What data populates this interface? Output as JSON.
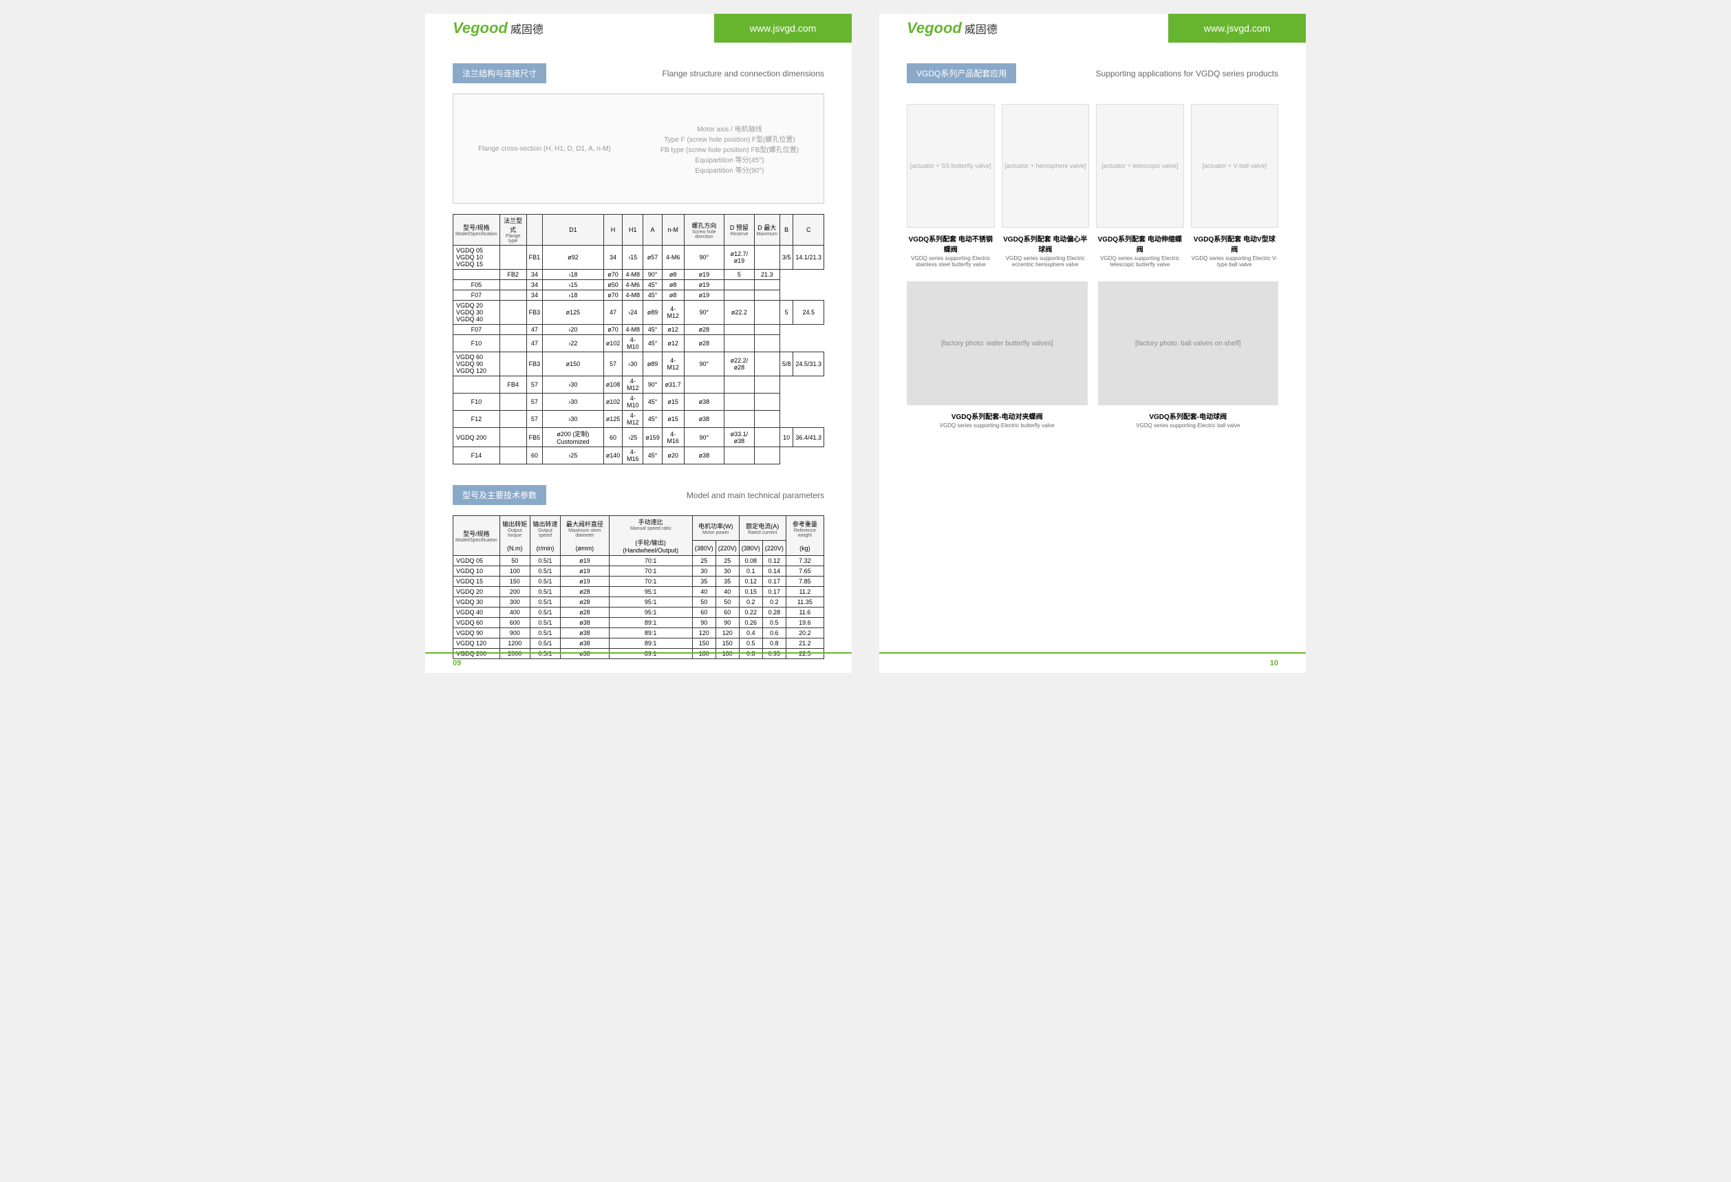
{
  "brand": {
    "logo_en": "Vegood",
    "logo_cn": "威固德",
    "url": "www.jsvgd.com"
  },
  "colors": {
    "brand_green": "#67b52f",
    "section_blue": "#8aa8c8",
    "border": "#333333",
    "text": "#333333",
    "muted": "#666666"
  },
  "left_page": {
    "page_num": "09",
    "section1": {
      "title_cn": "法兰结构与连接尺寸",
      "title_en": "Flange structure and connection dimensions",
      "diagram_labels": [
        "Flange cross-section (H, H1, D, D1, A, n-M)",
        "Motor axis / 电机轴线",
        "Type F (screw hole position) F型(螺孔位置)",
        "FB type (screw hole position) FB型(螺孔位置)",
        "Equipartition 等分(45°)",
        "Equipartition 等分(90°)",
        "90°",
        "45°"
      ]
    },
    "table1": {
      "headers": [
        {
          "cn": "型号/规格",
          "en": "Model/Specification"
        },
        {
          "cn": "法兰型式",
          "en": "Flange type"
        },
        {
          "cn": "D1",
          "en": ""
        },
        {
          "cn": "H",
          "en": ""
        },
        {
          "cn": "H1",
          "en": ""
        },
        {
          "cn": "A",
          "en": ""
        },
        {
          "cn": "n-M",
          "en": ""
        },
        {
          "cn": "螺孔方向",
          "en": "Screw hole direction"
        },
        {
          "cn": "D",
          "en": "",
          "sub": [
            {
              "cn": "预留",
              "en": "Reserve"
            },
            {
              "cn": "最大",
              "en": "Maximum"
            }
          ]
        },
        {
          "cn": "B",
          "en": ""
        },
        {
          "cn": "C",
          "en": ""
        }
      ],
      "rows": [
        {
          "models": [
            "VGDQ 05",
            "VGDQ 10",
            "VGDQ 15"
          ],
          "flange": [
            "",
            "FB1",
            "",
            "FB2",
            "F05",
            "",
            "F07",
            ""
          ],
          "d1": "ø92",
          "data": [
            [
              "34",
              "›15",
              "ø57",
              "4-M6",
              "90°",
              "ø12.7/ø19",
              "",
              "3/5",
              "14.1/21.3"
            ],
            [
              "34",
              "›18",
              "ø70",
              "4-M8",
              "90°",
              "ø8",
              "ø19",
              "5",
              "21.3"
            ],
            [
              "34",
              "›15",
              "ø50",
              "4-M6",
              "45°",
              "ø8",
              "ø19",
              "",
              ""
            ],
            [
              "34",
              "›18",
              "ø70",
              "4-M8",
              "45°",
              "ø8",
              "ø19",
              "",
              ""
            ]
          ]
        },
        {
          "models": [
            "VGDQ 20",
            "VGDQ 30",
            "VGDQ 40"
          ],
          "flange": [
            "",
            "FB3",
            "F07",
            "",
            "F10",
            ""
          ],
          "d1": "ø125",
          "data": [
            [
              "47",
              "›24",
              "ø89",
              "4-M12",
              "90°",
              "ø22.2",
              "",
              "5",
              "24.5"
            ],
            [
              "47",
              "›20",
              "ø70",
              "4-M8",
              "45°",
              "ø12",
              "ø28",
              "",
              ""
            ],
            [
              "47",
              "›22",
              "ø102",
              "4-M10",
              "45°",
              "ø12",
              "ø28",
              "",
              ""
            ]
          ]
        },
        {
          "models": [
            "VGDQ 60",
            "VGDQ 90",
            "VGDQ 120"
          ],
          "flange": [
            "",
            "FB3",
            "",
            "FB4",
            "F10",
            "",
            "F12",
            ""
          ],
          "d1": "ø150",
          "data": [
            [
              "57",
              "›30",
              "ø89",
              "4-M12",
              "90°",
              "ø22.2/ø28",
              "",
              "5/8",
              "24.5/31.3"
            ],
            [
              "57",
              "›30",
              "ø108",
              "4-M12",
              "90°",
              "ø31.7",
              "",
              "",
              ""
            ],
            [
              "57",
              "›30",
              "ø102",
              "4-M10",
              "45°",
              "ø15",
              "ø38",
              "",
              ""
            ],
            [
              "57",
              "›30",
              "ø125",
              "4-M12",
              "45°",
              "ø15",
              "ø38",
              "",
              ""
            ]
          ]
        },
        {
          "models": [
            "VGDQ 200"
          ],
          "flange": [
            "",
            "FB5",
            "F14",
            ""
          ],
          "d1": "ø200 (定制) Customized",
          "data": [
            [
              "60",
              "›25",
              "ø159",
              "4-M16",
              "90°",
              "ø33.1/ø38",
              "",
              "10",
              "36.4/41.3"
            ],
            [
              "60",
              "›25",
              "ø140",
              "4-M16",
              "45°",
              "ø20",
              "ø38",
              "",
              ""
            ]
          ]
        }
      ]
    },
    "section2": {
      "title_cn": "型号及主要技术参数",
      "title_en": "Model and main technical parameters"
    },
    "table2": {
      "headers": [
        {
          "cn": "型号/规格",
          "en": "Model/Specification"
        },
        {
          "cn": "输出转矩",
          "en": "Output torque",
          "unit": "(N.m)"
        },
        {
          "cn": "输出转速",
          "en": "Output speed",
          "unit": "(r/min)"
        },
        {
          "cn": "最大阀杆直径",
          "en": "Maximum stem diameter",
          "unit": "(ømm)"
        },
        {
          "cn": "手动速比",
          "en": "Manual speed ratio",
          "unit": "(手轮/输出) (Handwheel/Output)"
        },
        {
          "cn": "电机功率(W)",
          "en": "Motor power",
          "sub": [
            "(380V)",
            "(220V)"
          ]
        },
        {
          "cn": "额定电流(A)",
          "en": "Rated current",
          "sub": [
            "(380V)",
            "(220V)"
          ]
        },
        {
          "cn": "参考重量",
          "en": "Reference weight",
          "unit": "(kg)"
        }
      ],
      "rows": [
        [
          "VGDQ 05",
          "50",
          "0.5/1",
          "ø19",
          "70:1",
          "25",
          "25",
          "0.08",
          "0.12",
          "7.32"
        ],
        [
          "VGDQ 10",
          "100",
          "0.5/1",
          "ø19",
          "70:1",
          "30",
          "30",
          "0.1",
          "0.14",
          "7.65"
        ],
        [
          "VGDQ 15",
          "150",
          "0.5/1",
          "ø19",
          "70:1",
          "35",
          "35",
          "0.12",
          "0.17",
          "7.85"
        ],
        [
          "VGDQ 20",
          "200",
          "0.5/1",
          "ø28",
          "95:1",
          "40",
          "40",
          "0.15",
          "0.17",
          "11.2"
        ],
        [
          "VGDQ 30",
          "300",
          "0.5/1",
          "ø28",
          "95:1",
          "50",
          "50",
          "0.2",
          "0.2",
          "11.35"
        ],
        [
          "VGDQ 40",
          "400",
          "0.5/1",
          "ø28",
          "95:1",
          "60",
          "60",
          "0.22",
          "0.28",
          "11.6"
        ],
        [
          "VGDQ 60",
          "600",
          "0.5/1",
          "ø38",
          "89:1",
          "90",
          "90",
          "0.26",
          "0.5",
          "19.6"
        ],
        [
          "VGDQ 90",
          "900",
          "0.5/1",
          "ø38",
          "89:1",
          "120",
          "120",
          "0.4",
          "0.6",
          "20.2"
        ],
        [
          "VGDQ 120",
          "1200",
          "0.5/1",
          "ø38",
          "89:1",
          "150",
          "150",
          "0.5",
          "0.8",
          "21.2"
        ],
        [
          "VGDQ 200",
          "2000",
          "0.5/1",
          "ø38",
          "89:1",
          "180",
          "180",
          "0.8",
          "0.95",
          "22.5"
        ]
      ]
    }
  },
  "right_page": {
    "page_num": "10",
    "section": {
      "title_cn": "VGDQ系列产品配套应用",
      "title_en": "Supporting applications for VGDQ series products"
    },
    "products": [
      {
        "cn": "VGDQ系列配套 电动不锈钢蝶阀",
        "en": "VGDQ series supporting Electric stainless steel butterfly valve",
        "img": "[actuator + SS butterfly valve]"
      },
      {
        "cn": "VGDQ系列配套 电动偏心半球阀",
        "en": "VGDQ series supporting Electric eccentric hemisphere valve",
        "img": "[actuator + hemisphere valve]"
      },
      {
        "cn": "VGDQ系列配套 电动伸缩蝶阀",
        "en": "VGDQ series supporting Electric telescopic butterfly valve",
        "img": "[actuator + telescopic valve]"
      },
      {
        "cn": "VGDQ系列配套 电动V型球阀",
        "en": "VGDQ series supporting Electric V-type ball valve",
        "img": "[actuator + V-ball valve]"
      }
    ],
    "photos": [
      {
        "cn": "VGDQ系列配套-电动对夹蝶阀",
        "en": "VGDQ series supporting-Electric butterfly valve",
        "img": "[factory photo: wafer butterfly valves]"
      },
      {
        "cn": "VGDQ系列配套-电动球阀",
        "en": "VGDQ series supporting-Electric ball valve",
        "img": "[factory photo: ball valves on shelf]"
      }
    ]
  }
}
